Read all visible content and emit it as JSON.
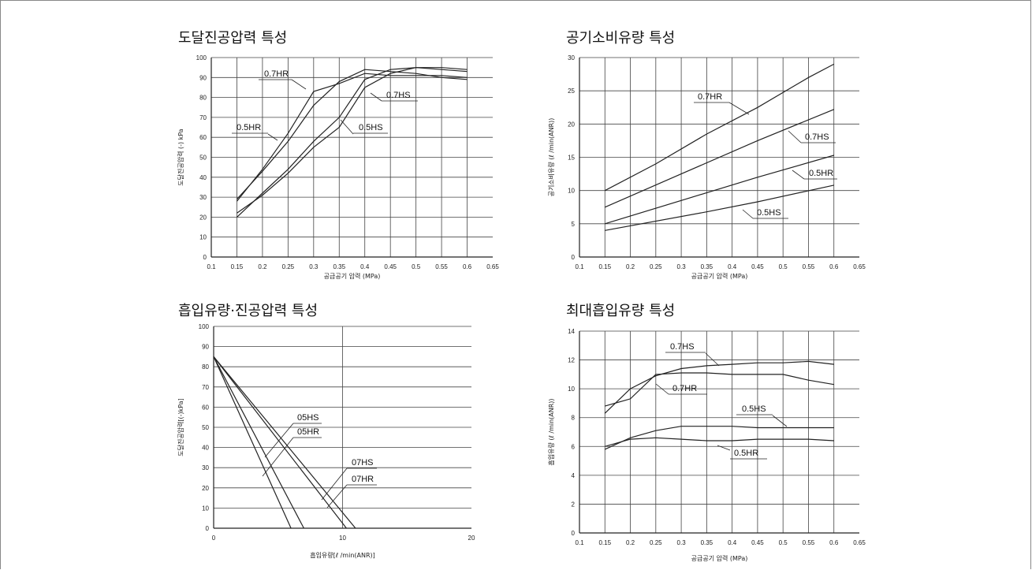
{
  "chart_data": [
    {
      "type": "line",
      "title": "도달진공압력 특성",
      "xlabel": "공급공기 압력 (MPa)",
      "ylabel": "도달진공압력 (-) kPa",
      "xlim": [
        0.1,
        0.65
      ],
      "ylim": [
        0,
        100
      ],
      "xticks": [
        "0.1",
        "0.15",
        "0.2",
        "0.25",
        "0.3",
        "0.35",
        "0.4",
        "0.45",
        "0.5",
        "0.55",
        "0.6",
        "0.65"
      ],
      "yticks": [
        "0",
        "10",
        "20",
        "30",
        "40",
        "50",
        "60",
        "70",
        "80",
        "90",
        "100"
      ],
      "series": [
        {
          "name": "0.7HR",
          "x": [
            0.15,
            0.2,
            0.25,
            0.3,
            0.35,
            0.4,
            0.45,
            0.5,
            0.55,
            0.6
          ],
          "y": [
            28,
            44,
            62,
            83,
            87,
            92,
            91,
            91,
            91,
            90
          ]
        },
        {
          "name": "0.7HS",
          "x": [
            0.15,
            0.2,
            0.25,
            0.3,
            0.35,
            0.4,
            0.45,
            0.5,
            0.55,
            0.6
          ],
          "y": [
            22,
            31,
            42,
            55,
            65,
            85,
            92,
            95,
            95,
            94
          ]
        },
        {
          "name": "0.5HR",
          "x": [
            0.15,
            0.2,
            0.25,
            0.3,
            0.35,
            0.4,
            0.45,
            0.5,
            0.55,
            0.6
          ],
          "y": [
            29,
            43,
            58,
            76,
            88,
            94,
            93,
            92,
            90,
            89
          ]
        },
        {
          "name": "0.5HS",
          "x": [
            0.15,
            0.2,
            0.25,
            0.3,
            0.35,
            0.4,
            0.45,
            0.5,
            0.55,
            0.6
          ],
          "y": [
            20,
            32,
            44,
            58,
            70,
            89,
            94,
            95,
            94,
            93
          ]
        }
      ],
      "labels": [
        {
          "text": "0.7HR",
          "series": "0.7HR"
        },
        {
          "text": "0.7HS",
          "series": "0.7HS"
        },
        {
          "text": "0.5HR",
          "series": "0.5HR"
        },
        {
          "text": "0.5HS",
          "series": "0.5HS"
        }
      ]
    },
    {
      "type": "line",
      "title": "공기소비유량 특성",
      "xlabel": "공급공기 압력 (MPa)",
      "ylabel": "공기소비유량 (ℓ /min(ANR))",
      "xlim": [
        0.1,
        0.65
      ],
      "ylim": [
        0,
        30
      ],
      "xticks": [
        "0.1",
        "0.15",
        "0.2",
        "0.25",
        "0.3",
        "0.35",
        "0.4",
        "0.45",
        "0.5",
        "0.55",
        "0.6",
        "0.65"
      ],
      "yticks": [
        "0",
        "5",
        "10",
        "15",
        "20",
        "25",
        "30"
      ],
      "series": [
        {
          "name": "0.7HR",
          "x": [
            0.15,
            0.25,
            0.35,
            0.45,
            0.55,
            0.6
          ],
          "y": [
            10,
            14,
            18.5,
            22.5,
            27,
            29
          ]
        },
        {
          "name": "0.7HS",
          "x": [
            0.15,
            0.3,
            0.45,
            0.6
          ],
          "y": [
            7.5,
            12.5,
            17.5,
            22.2
          ]
        },
        {
          "name": "0.5HR",
          "x": [
            0.15,
            0.3,
            0.45,
            0.6
          ],
          "y": [
            5,
            8.5,
            12,
            15.3
          ]
        },
        {
          "name": "0.5HS",
          "x": [
            0.15,
            0.35,
            0.45,
            0.6
          ],
          "y": [
            4,
            6.8,
            8.3,
            10.8
          ]
        }
      ],
      "labels": [
        {
          "text": "0.7HR",
          "series": "0.7HR"
        },
        {
          "text": "0.7HS",
          "series": "0.7HS"
        },
        {
          "text": "0.5HR",
          "series": "0.5HR"
        },
        {
          "text": "0.5HS",
          "series": "0.5HS"
        }
      ]
    },
    {
      "type": "line",
      "title": "흡입유량·진공압력 특성",
      "xlabel": "흡입유량[ℓ /min(ANR)]",
      "ylabel": "도달진공압력[(-)kPa]",
      "xlim": [
        0,
        20
      ],
      "ylim": [
        0,
        100
      ],
      "xticks": [
        "0",
        "10",
        "20"
      ],
      "yticks": [
        "0",
        "10",
        "20",
        "30",
        "40",
        "50",
        "60",
        "70",
        "80",
        "90",
        "100"
      ],
      "series": [
        {
          "name": "05HS",
          "x": [
            0,
            6
          ],
          "y": [
            85,
            0
          ]
        },
        {
          "name": "05HR",
          "x": [
            0,
            7
          ],
          "y": [
            85,
            0
          ]
        },
        {
          "name": "07HS",
          "x": [
            0,
            10.3
          ],
          "y": [
            85,
            0
          ]
        },
        {
          "name": "07HR",
          "x": [
            0,
            11
          ],
          "y": [
            85,
            0
          ]
        }
      ],
      "labels": [
        {
          "text": "05HS",
          "series": "05HS"
        },
        {
          "text": "05HR",
          "series": "05HR"
        },
        {
          "text": "07HS",
          "series": "07HS"
        },
        {
          "text": "07HR",
          "series": "07HR"
        }
      ]
    },
    {
      "type": "line",
      "title": "최대흡입유량 특성",
      "xlabel": "공급공기 압력 (MPa)",
      "ylabel": "흡입유량 (ℓ /min(ANR))",
      "xlim": [
        0.1,
        0.65
      ],
      "ylim": [
        0,
        14
      ],
      "xticks": [
        "0.1",
        "0.15",
        "0.2",
        "0.25",
        "0.3",
        "0.35",
        "0.4",
        "0.45",
        "0.5",
        "0.55",
        "0.6",
        "0.65"
      ],
      "yticks": [
        "0",
        "2",
        "4",
        "6",
        "8",
        "10",
        "12",
        "14"
      ],
      "series": [
        {
          "name": "0.7HS",
          "x": [
            0.15,
            0.2,
            0.25,
            0.3,
            0.35,
            0.4,
            0.45,
            0.5,
            0.55,
            0.6
          ],
          "y": [
            8.3,
            10,
            10.9,
            11.4,
            11.6,
            11.7,
            11.8,
            11.8,
            11.9,
            11.7
          ]
        },
        {
          "name": "0.7HR",
          "x": [
            0.15,
            0.2,
            0.25,
            0.3,
            0.35,
            0.4,
            0.45,
            0.5,
            0.55,
            0.6
          ],
          "y": [
            8.8,
            9.3,
            11,
            11.1,
            11.1,
            11,
            11,
            11,
            10.6,
            10.3
          ]
        },
        {
          "name": "0.5HS",
          "x": [
            0.15,
            0.2,
            0.25,
            0.3,
            0.35,
            0.4,
            0.45,
            0.5,
            0.55,
            0.6
          ],
          "y": [
            5.8,
            6.6,
            7.1,
            7.4,
            7.4,
            7.4,
            7.3,
            7.3,
            7.3,
            7.3
          ]
        },
        {
          "name": "0.5HR",
          "x": [
            0.15,
            0.2,
            0.25,
            0.3,
            0.35,
            0.4,
            0.45,
            0.5,
            0.55,
            0.6
          ],
          "y": [
            6,
            6.5,
            6.6,
            6.5,
            6.4,
            6.4,
            6.5,
            6.5,
            6.5,
            6.4
          ]
        }
      ],
      "labels": [
        {
          "text": "0.7HS",
          "series": "0.7HS"
        },
        {
          "text": "0.7HR",
          "series": "0.7HR"
        },
        {
          "text": "0.5HS",
          "series": "0.5HS"
        },
        {
          "text": "0.5HR",
          "series": "0.5HR"
        }
      ]
    }
  ]
}
